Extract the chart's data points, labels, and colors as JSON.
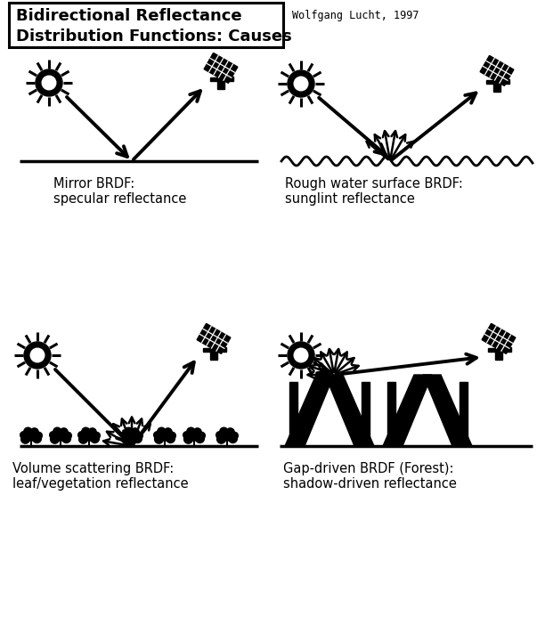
{
  "title_line1": "Bidirectional Reflectance",
  "title_line2": "Distribution Functions: Causes",
  "author": "Wolfgang Lucht, 1997",
  "bg_color": "#ffffff",
  "labels": {
    "mirror": "Mirror BRDF:\nspecular reflectance",
    "rough_water": "Rough water surface BRDF:\nsunglint reflectance",
    "volume": "Volume scattering BRDF:\nleaf/vegetation reflectance",
    "gap": "Gap-driven BRDF (Forest):\nshadow-driven reflectance"
  },
  "fig_w": 6.12,
  "fig_h": 7.11,
  "dpi": 100
}
